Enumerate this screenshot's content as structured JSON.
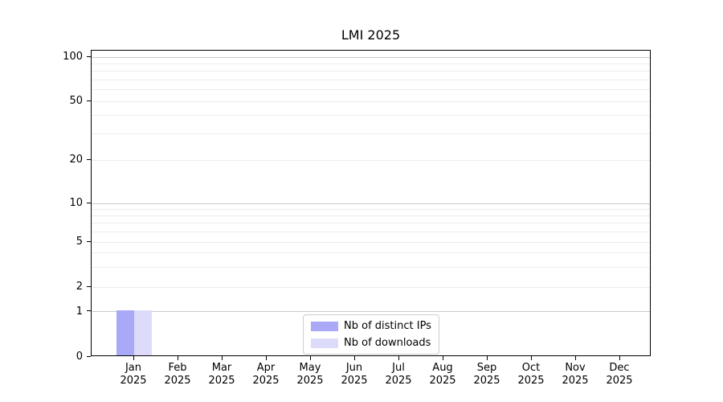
{
  "chart_data": {
    "type": "bar",
    "title": "LMI 2025",
    "categories": [
      "Jan",
      "Feb",
      "Mar",
      "Apr",
      "May",
      "Jun",
      "Jul",
      "Aug",
      "Sep",
      "Oct",
      "Nov",
      "Dec"
    ],
    "year_label": "2025",
    "series": [
      {
        "name": "Nb of distinct IPs",
        "color": "#a9a9f7",
        "values": [
          1,
          0,
          0,
          0,
          0,
          0,
          0,
          0,
          0,
          0,
          0,
          0
        ]
      },
      {
        "name": "Nb of downloads",
        "color": "#dcdcfa",
        "values": [
          1,
          0,
          0,
          0,
          0,
          0,
          0,
          0,
          0,
          0,
          0,
          0
        ]
      }
    ],
    "yticks": [
      0,
      1,
      2,
      5,
      10,
      20,
      50,
      100
    ],
    "decade_gridlines": [
      1,
      10,
      100
    ],
    "minor_gridlines": [
      3,
      4,
      6,
      7,
      8,
      9,
      30,
      40,
      60,
      70,
      80,
      90
    ],
    "ylim": [
      0,
      110
    ],
    "yscale": "symlog",
    "grid": true,
    "xlabel": "",
    "ylabel": "",
    "legend_position": "lower center",
    "colors": {
      "background": "#ffffff",
      "axis": "#000000",
      "grid_major": "#c9c9c9",
      "grid_minor": "#ededed",
      "legend_border": "#cccccc"
    }
  }
}
